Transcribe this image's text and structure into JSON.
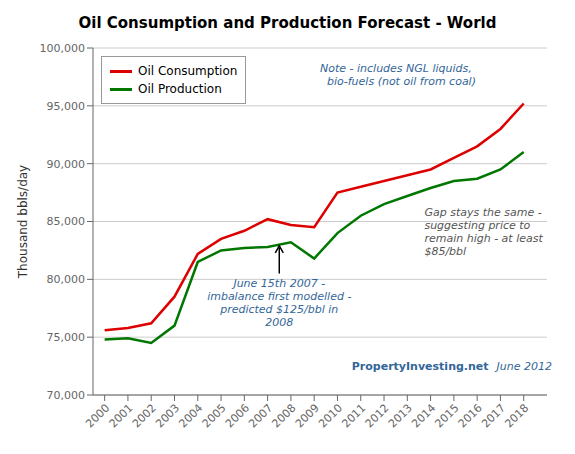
{
  "chart_data": {
    "type": "line",
    "title": "Oil Consumption and Production Forecast - World",
    "ylabel": "Thousand bbls/day",
    "x": [
      2000,
      2001,
      2002,
      2003,
      2004,
      2005,
      2006,
      2007,
      2008,
      2009,
      2010,
      2011,
      2012,
      2013,
      2014,
      2015,
      2016,
      2017,
      2018
    ],
    "xlim": [
      1999.5,
      2019.0
    ],
    "xticks": [
      2000,
      2001,
      2002,
      2003,
      2004,
      2005,
      2006,
      2007,
      2008,
      2009,
      2010,
      2011,
      2012,
      2013,
      2014,
      2015,
      2016,
      2017,
      2018
    ],
    "ylim": [
      70000,
      100000
    ],
    "yticks": [
      {
        "value": 70000,
        "label": "70,000"
      },
      {
        "value": 75000,
        "label": "75,000"
      },
      {
        "value": 80000,
        "label": "80,000"
      },
      {
        "value": 85000,
        "label": "85,000"
      },
      {
        "value": 90000,
        "label": "90,000"
      },
      {
        "value": 95000,
        "label": "95,000"
      },
      {
        "value": 100000,
        "label": "100,000"
      }
    ],
    "series": [
      {
        "name": "Oil Consumption",
        "color": "#dd0000",
        "values": [
          75600,
          75800,
          76200,
          78500,
          82200,
          83500,
          84200,
          85200,
          84700,
          84500,
          87500,
          88000,
          88500,
          89000,
          89500,
          90500,
          91500,
          93000,
          95200
        ]
      },
      {
        "name": "Oil Production",
        "color": "#007700",
        "values": [
          74800,
          74900,
          74500,
          76000,
          81500,
          82500,
          82700,
          82800,
          83200,
          81800,
          84000,
          85500,
          86500,
          87200,
          87900,
          88500,
          88700,
          89500,
          91000
        ]
      }
    ],
    "annotations": [
      "June 15th 2007 -\nimbalance first modelled -\npredicted $125/bbl in\n2008",
      "Note - includes NGL liquids,\n  bio-fuels (not oil from coal)",
      "Gap stays the same -\nsuggesting price to\nremain high - at least\n$85/bbl",
      "PropertyInvesting.net",
      "June 2012"
    ],
    "grid": true,
    "legend": "upper left"
  }
}
